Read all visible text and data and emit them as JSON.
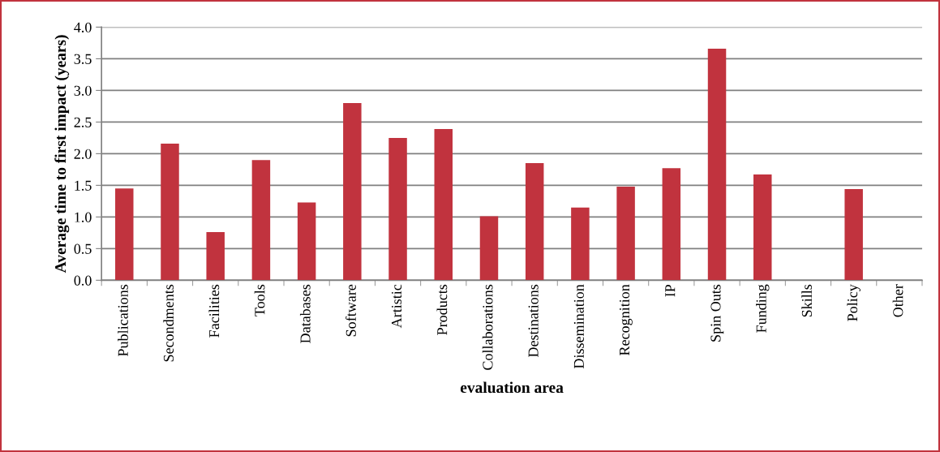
{
  "chart_data": {
    "type": "bar",
    "categories": [
      "Publications",
      "Secondments",
      "Facilities",
      "Tools",
      "Databases",
      "Software",
      "Artistic",
      "Products",
      "Collaborations",
      "Destinations",
      "Dissemination",
      "Recognition",
      "IP",
      "Spin Outs",
      "Funding",
      "Skills",
      "Policy",
      "Other"
    ],
    "values": [
      1.45,
      2.16,
      0.76,
      1.9,
      1.23,
      2.8,
      2.25,
      2.39,
      1.01,
      1.85,
      1.15,
      1.48,
      1.77,
      3.66,
      1.67,
      null,
      1.44,
      null
    ],
    "color": "#c1333e",
    "xlabel": "evaluation area",
    "ylabel": "Average time to first impact (years)",
    "ylim": [
      0,
      4.0
    ],
    "yticks": [
      {
        "value": 0,
        "label": "0.0"
      },
      {
        "value": 0.5,
        "label": "0.5"
      },
      {
        "value": 1.0,
        "label": "1.0"
      },
      {
        "value": 1.5,
        "label": "1.5"
      },
      {
        "value": 2.0,
        "label": "2.0"
      },
      {
        "value": 2.5,
        "label": "2.5"
      },
      {
        "value": 3.0,
        "label": "3.0"
      },
      {
        "value": 3.5,
        "label": "3.5"
      },
      {
        "value": 4.0,
        "label": "4.0"
      }
    ],
    "grid": "y"
  }
}
